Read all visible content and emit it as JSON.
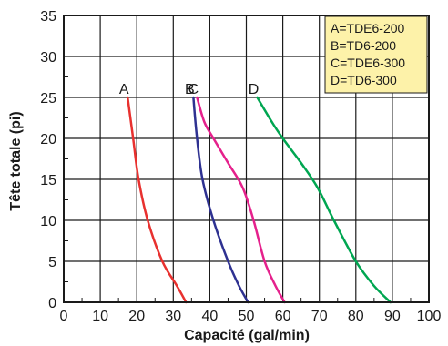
{
  "chart_data": {
    "type": "line",
    "title": "",
    "xlabel": "Capacité (gal/min)",
    "ylabel": "Tête totale (pi)",
    "xlim": [
      0,
      100
    ],
    "ylim": [
      0,
      35
    ],
    "xticks": [
      0,
      10,
      20,
      30,
      40,
      50,
      60,
      70,
      80,
      90,
      100
    ],
    "yticks": [
      0,
      5,
      10,
      15,
      20,
      25,
      30,
      35
    ],
    "grid": true,
    "legend_position": "top-right",
    "legend": [
      "A=TDE6-200",
      "B=TD6-200",
      "C=TDE6-300",
      "D=TD6-300"
    ],
    "series": [
      {
        "label": "A",
        "color": "#e8312f",
        "points": [
          [
            17.5,
            25
          ],
          [
            19,
            20
          ],
          [
            20.5,
            15
          ],
          [
            23,
            10
          ],
          [
            27,
            5
          ],
          [
            31,
            2
          ],
          [
            33.5,
            0
          ]
        ]
      },
      {
        "label": "B",
        "color": "#2e3191",
        "points": [
          [
            35.5,
            25
          ],
          [
            36.5,
            20
          ],
          [
            38,
            15
          ],
          [
            41,
            10
          ],
          [
            45,
            5
          ],
          [
            48,
            2
          ],
          [
            50.5,
            0
          ]
        ]
      },
      {
        "label": "C",
        "color": "#e5218c",
        "points": [
          [
            36.5,
            25
          ],
          [
            38.5,
            22
          ],
          [
            41,
            20
          ],
          [
            45,
            17
          ],
          [
            49,
            14
          ],
          [
            52,
            10
          ],
          [
            55,
            5
          ],
          [
            58,
            2
          ],
          [
            60.5,
            0
          ]
        ]
      },
      {
        "label": "D",
        "color": "#00a651",
        "points": [
          [
            53,
            25
          ],
          [
            57,
            22
          ],
          [
            60,
            20
          ],
          [
            65,
            17
          ],
          [
            69.5,
            14
          ],
          [
            74,
            10
          ],
          [
            80,
            5
          ],
          [
            85,
            2
          ],
          [
            89.5,
            0
          ]
        ]
      }
    ]
  }
}
